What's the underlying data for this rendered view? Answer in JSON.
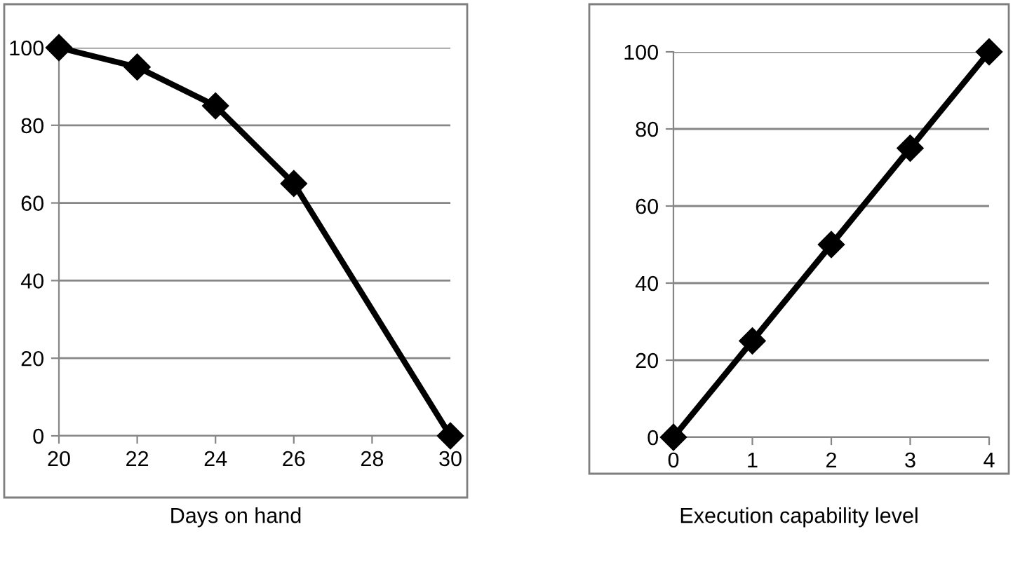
{
  "chart_data": [
    {
      "type": "line",
      "xlabel": "Days on hand",
      "x": [
        20,
        22,
        24,
        26,
        30
      ],
      "series": [
        {
          "color": "#000000",
          "values": [
            100,
            95,
            85,
            65,
            0
          ]
        }
      ],
      "xlim": [
        20,
        30
      ],
      "xticks": [
        20,
        22,
        24,
        26,
        28,
        30
      ],
      "ylim": [
        0,
        100
      ],
      "yticks": [
        0,
        20,
        40,
        60,
        80,
        100
      ],
      "grid": "y",
      "marker": "diamond",
      "line_style": "solid",
      "legend": false
    },
    {
      "type": "line",
      "xlabel": "Execution capability level",
      "x": [
        0,
        1,
        2,
        3,
        4
      ],
      "series": [
        {
          "color": "#000000",
          "values": [
            0,
            25,
            50,
            75,
            100
          ]
        }
      ],
      "xlim": [
        0,
        4
      ],
      "xticks": [
        0,
        1,
        2,
        3,
        4
      ],
      "ylim": [
        0,
        100
      ],
      "yticks": [
        0,
        20,
        40,
        60,
        80,
        100
      ],
      "grid": "y",
      "marker": "diamond",
      "line_style": "solid",
      "legend": false
    }
  ]
}
